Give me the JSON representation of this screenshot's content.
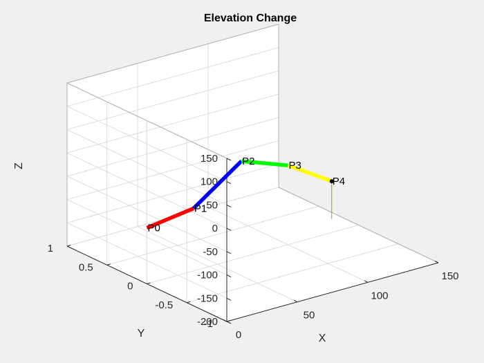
{
  "chart_data": {
    "type": "line",
    "title": "Elevation Change",
    "xlabel": "X",
    "ylabel": "Y",
    "zlabel": "Z",
    "xlim": [
      0,
      150
    ],
    "ylim": [
      -1,
      1
    ],
    "zlim": [
      -200,
      150
    ],
    "xticks": [
      "0",
      "50",
      "100",
      "150"
    ],
    "yticks": [
      "-1",
      "-0.5",
      "0",
      "0.5",
      "1"
    ],
    "zticks": [
      "-200",
      "-150",
      "-100",
      "-50",
      "0",
      "50",
      "100",
      "150"
    ],
    "grid": true,
    "points": [
      {
        "label": "P0",
        "x": 0,
        "y": 0,
        "z": -80
      },
      {
        "label": "P1",
        "x": 33,
        "y": 0,
        "z": -66
      },
      {
        "label": "P2",
        "x": 67,
        "y": 0,
        "z": 7
      },
      {
        "label": "P3",
        "x": 100,
        "y": 0,
        "z": -30
      },
      {
        "label": "P4",
        "x": 131,
        "y": 0,
        "z": -90
      }
    ],
    "segments": [
      {
        "from": "P0",
        "to": "P1",
        "color": "#ff0000"
      },
      {
        "from": "P1",
        "to": "P2",
        "color": "#0000ff"
      },
      {
        "from": "P2",
        "to": "P3",
        "color": "#00ff00"
      },
      {
        "from": "P3",
        "to": "P4",
        "color": "#ffff00"
      }
    ],
    "marker": {
      "at": "P4",
      "color": "#000000",
      "stem_color": "#77ac30",
      "stem_to_z": -171
    }
  }
}
